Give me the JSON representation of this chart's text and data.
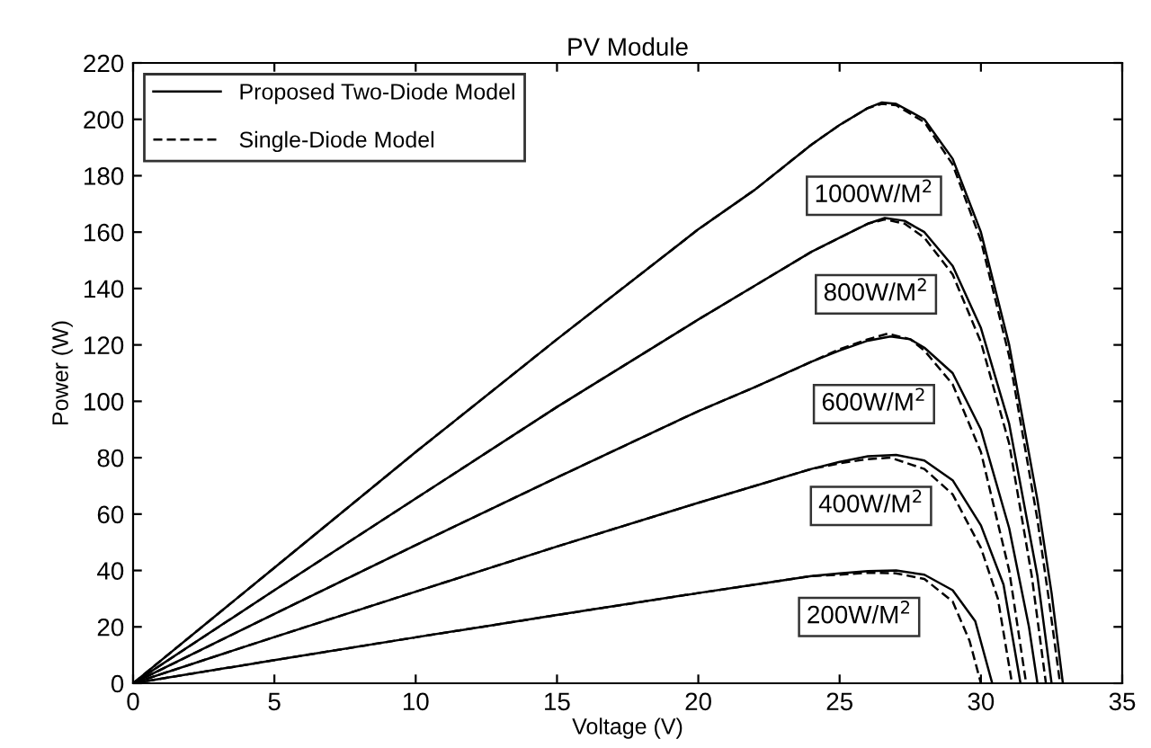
{
  "chart_data": {
    "type": "line",
    "title": "PV Module",
    "xlabel": "Voltage (V)",
    "ylabel": "Power (W)",
    "xlim": [
      0,
      35
    ],
    "ylim": [
      0,
      220
    ],
    "xticks": [
      0,
      5,
      10,
      15,
      20,
      25,
      30,
      35
    ],
    "yticks": [
      0,
      20,
      40,
      60,
      80,
      100,
      120,
      140,
      160,
      180,
      200,
      220
    ],
    "grid": false,
    "legend": "top left",
    "marker": "none",
    "series": [
      {
        "name": "Proposed Two-Diode Model",
        "color": "#000000",
        "line_style": "solid",
        "x": [
          0,
          5,
          10,
          15,
          20,
          22,
          24,
          25,
          26,
          26.5,
          27,
          28,
          29,
          30,
          31,
          32,
          32.5,
          32.9
        ],
        "values": [
          0,
          41,
          82,
          122,
          161,
          175,
          191,
          198,
          204,
          206,
          205.5,
          200,
          186,
          160,
          120,
          65,
          32,
          0
        ]
      },
      {
        "name": "Single-Diode Model",
        "color": "#000000",
        "line_style": "dashed",
        "x": [
          0,
          5,
          10,
          15,
          20,
          22,
          24,
          25,
          26,
          26.5,
          27,
          28,
          29,
          30,
          31,
          32,
          32.4,
          32.8
        ],
        "values": [
          0,
          41,
          82,
          122,
          161,
          175,
          191,
          198,
          204,
          205.5,
          205,
          199,
          184,
          157,
          116,
          58,
          30,
          0
        ]
      },
      {
        "color": "#000000",
        "line_style": "solid",
        "x": [
          0,
          5,
          10,
          15,
          20,
          22,
          24,
          25,
          26,
          26.6,
          27.3,
          28,
          29,
          30,
          31,
          32,
          32.5
        ],
        "values": [
          0,
          33,
          65.5,
          98,
          129,
          141,
          153,
          158,
          163,
          165,
          164,
          160,
          148,
          126,
          92,
          38,
          0
        ]
      },
      {
        "color": "#000000",
        "line_style": "dashed",
        "x": [
          0,
          5,
          10,
          15,
          20,
          22,
          24,
          25,
          26,
          26.6,
          27.3,
          28,
          29,
          30,
          31,
          31.8,
          32.3
        ],
        "values": [
          0,
          33,
          65.5,
          98,
          129,
          141,
          153,
          158,
          163,
          164.5,
          163,
          158,
          145,
          121,
          85,
          38,
          0
        ]
      },
      {
        "color": "#000000",
        "line_style": "solid",
        "x": [
          0,
          5,
          10,
          15,
          20,
          22,
          24,
          25,
          26,
          26.8,
          27.5,
          28,
          29,
          30,
          31,
          31.7,
          32
        ],
        "values": [
          0,
          24.6,
          49,
          73,
          96.5,
          105,
          114,
          118,
          121.5,
          123,
          122,
          119,
          110,
          90,
          55,
          20,
          0
        ]
      },
      {
        "color": "#000000",
        "line_style": "dashed",
        "x": [
          0,
          5,
          10,
          15,
          20,
          22,
          24,
          25,
          26,
          26.7,
          27.5,
          28,
          29,
          30,
          31,
          31.6
        ],
        "values": [
          0,
          24.6,
          49,
          73,
          96.5,
          105,
          114,
          118.5,
          122,
          124,
          122,
          118,
          106,
          82,
          40,
          0
        ]
      },
      {
        "color": "#000000",
        "line_style": "solid",
        "x": [
          0,
          5,
          10,
          15,
          20,
          22,
          24,
          25,
          26,
          27,
          28,
          29,
          30,
          30.8,
          31.4
        ],
        "values": [
          0,
          16.4,
          32.5,
          48.5,
          64,
          70,
          76,
          78.5,
          80.5,
          81,
          79,
          72,
          56,
          35,
          0
        ]
      },
      {
        "color": "#000000",
        "line_style": "dashed",
        "x": [
          0,
          5,
          10,
          15,
          20,
          22,
          24,
          25,
          26,
          26.8,
          28,
          29,
          30,
          30.6,
          31.1
        ],
        "values": [
          0,
          16.4,
          32.5,
          48.5,
          64,
          70,
          76,
          78,
          79.5,
          80,
          76,
          67,
          48,
          30,
          0
        ]
      },
      {
        "color": "#000000",
        "line_style": "solid",
        "x": [
          0,
          5,
          10,
          15,
          20,
          22,
          24,
          25,
          26,
          27,
          28,
          29,
          29.8,
          30.4
        ],
        "values": [
          0,
          8.2,
          16.3,
          24.2,
          32,
          35,
          38,
          39,
          39.8,
          40,
          38.5,
          33,
          22,
          0
        ]
      },
      {
        "color": "#000000",
        "line_style": "dashed",
        "x": [
          0,
          5,
          10,
          15,
          20,
          22,
          24,
          25,
          26,
          27,
          28,
          29,
          29.6,
          30
        ],
        "values": [
          0,
          8.2,
          16.3,
          24.2,
          32,
          35,
          38,
          38.5,
          39.2,
          39,
          37,
          29,
          15,
          0
        ]
      }
    ],
    "annotations": [
      "1000W/M$^{2}$",
      "800W/M$^{2}$",
      "600W/M$^{2}$",
      "400W/M$^{2}$",
      "200W/M$^{2}$"
    ]
  }
}
